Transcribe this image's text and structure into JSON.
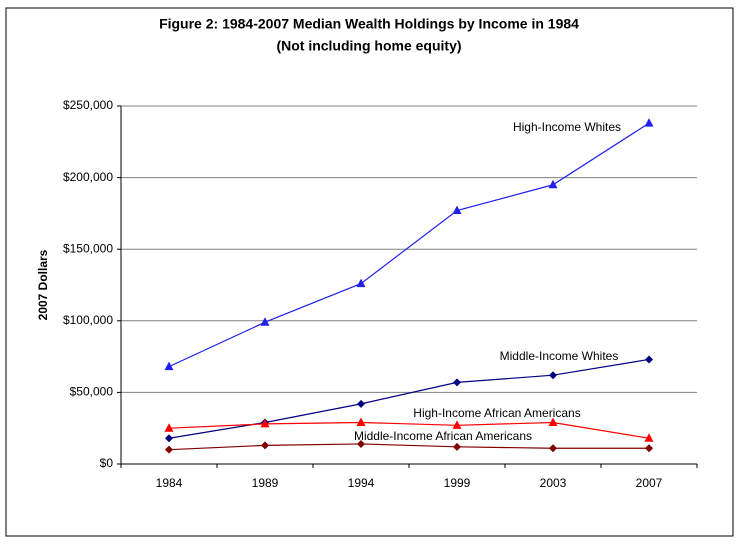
{
  "chart_data": {
    "type": "line",
    "title": "Figure 2: 1984-2007 Median Wealth Holdings by Income  in 1984",
    "subtitle": "(Not including home equity)",
    "y_label": "2007 Dollars",
    "categories": [
      "1984",
      "1989",
      "1994",
      "1999",
      "2003",
      "2007"
    ],
    "series": [
      {
        "name": "High-Income Whites",
        "color": "#2020f0",
        "marker": "triangle",
        "values": [
          68000,
          99000,
          126000,
          177000,
          195000,
          238000
        ]
      },
      {
        "name": "Middle-Income Whites",
        "color": "#000080",
        "marker": "diamond",
        "values": [
          18000,
          29000,
          42000,
          57000,
          62000,
          73000
        ]
      },
      {
        "name": "High-Income African Americans",
        "color": "#ff0000",
        "marker": "triangle",
        "values": [
          25000,
          28000,
          29000,
          27000,
          29000,
          18000
        ]
      },
      {
        "name": "Middle-Income African Americans",
        "color": "#800000",
        "marker": "diamond",
        "values": [
          10000,
          13000,
          14000,
          12000,
          11000,
          11000
        ]
      }
    ],
    "ylim": [
      0,
      250000
    ],
    "yticks": [
      {
        "value": 0,
        "label": "$0"
      },
      {
        "value": 50000,
        "label": "$50,000"
      },
      {
        "value": 100000,
        "label": "$100,000"
      },
      {
        "value": 150000,
        "label": "$150,000"
      },
      {
        "value": 200000,
        "label": "$200,000"
      },
      {
        "value": 250000,
        "label": "$250,000"
      }
    ],
    "grid": true
  }
}
